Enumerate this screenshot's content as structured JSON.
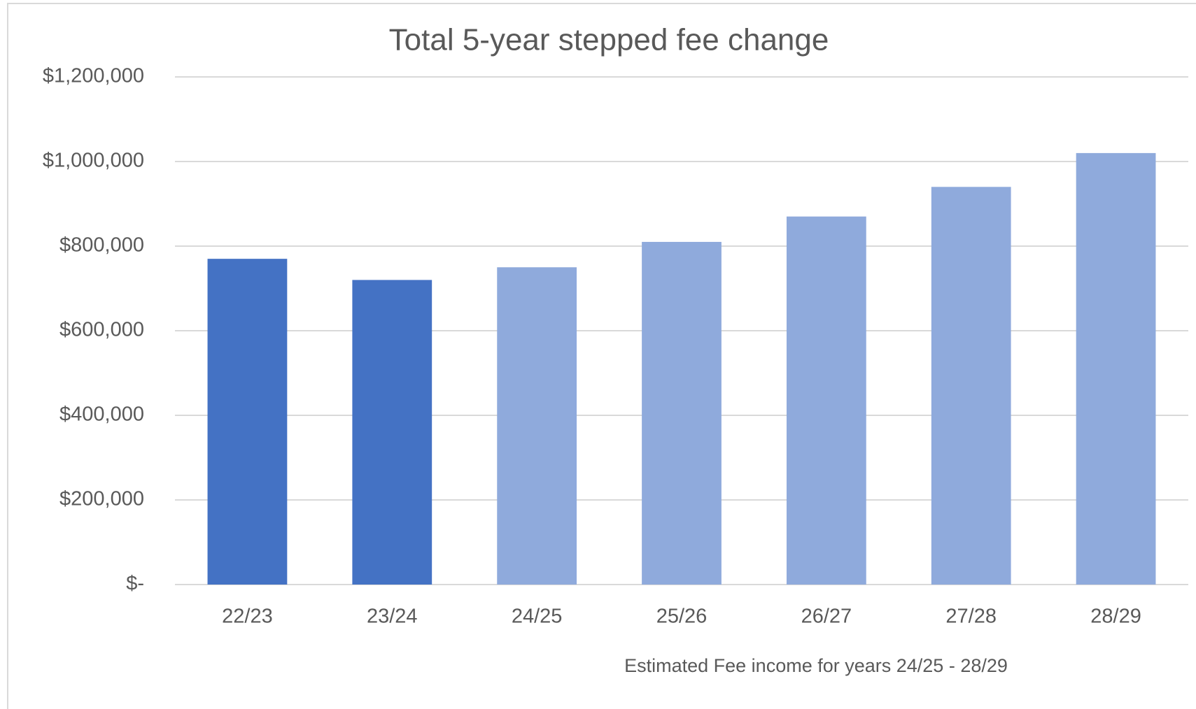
{
  "chart_data": {
    "type": "bar",
    "title": "Total 5-year stepped fee change",
    "annotation": "Estimated Fee income for years 24/25 - 28/29",
    "categories": [
      "22/23",
      "23/24",
      "24/25",
      "25/26",
      "26/27",
      "27/28",
      "28/29"
    ],
    "values": [
      770000,
      720000,
      750000,
      810000,
      870000,
      940000,
      1020000
    ],
    "colors": [
      "#4472c4",
      "#4472c4",
      "#8faadc",
      "#8faadc",
      "#8faadc",
      "#8faadc",
      "#8faadc"
    ],
    "ylim": [
      0,
      1200000
    ],
    "yticks": [
      {
        "value": 0,
        "label": "$-"
      },
      {
        "value": 200000,
        "label": "$200,000"
      },
      {
        "value": 400000,
        "label": "$400,000"
      },
      {
        "value": 600000,
        "label": "$600,000"
      },
      {
        "value": 800000,
        "label": "$800,000"
      },
      {
        "value": 1000000,
        "label": "$1,000,000"
      },
      {
        "value": 1200000,
        "label": "$1,200,000"
      }
    ],
    "grid": true
  }
}
